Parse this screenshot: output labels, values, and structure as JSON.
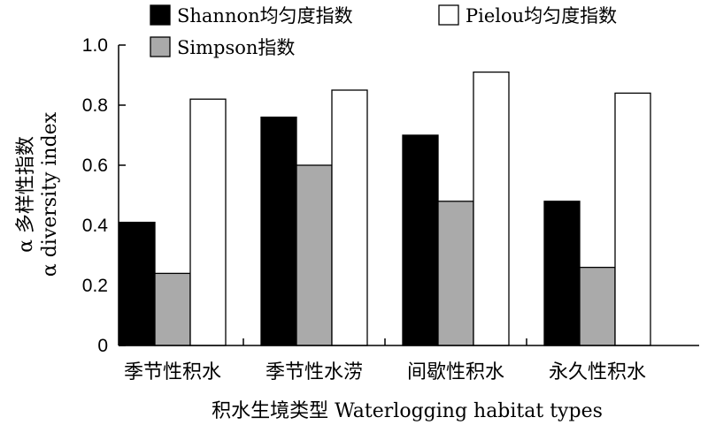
{
  "chart_data": {
    "type": "bar",
    "categories": [
      "季节性积水",
      "季节性水涝",
      "间歇性积水",
      "永久性积水"
    ],
    "series": [
      {
        "name": "Shannon均匀度指数",
        "values": [
          0.41,
          0.76,
          0.7,
          0.48
        ],
        "color": "#000000"
      },
      {
        "name": "Simpson指数",
        "values": [
          0.24,
          0.6,
          0.48,
          0.26
        ],
        "color": "#aaaaaa"
      },
      {
        "name": "Pielou均匀度指数",
        "values": [
          0.82,
          0.85,
          0.91,
          0.84
        ],
        "color": "#ffffff"
      }
    ],
    "ylim": [
      0,
      1.0
    ],
    "yticks": [
      "0",
      "0.2",
      "0.4",
      "0.6",
      "0.8",
      "1.0"
    ],
    "ylabel_line1": "α 多样性指数",
    "ylabel_line2": "α diversity index",
    "xlabel": "积水生境类型 Waterlogging habitat types",
    "legend_position": "top",
    "grid": false
  }
}
